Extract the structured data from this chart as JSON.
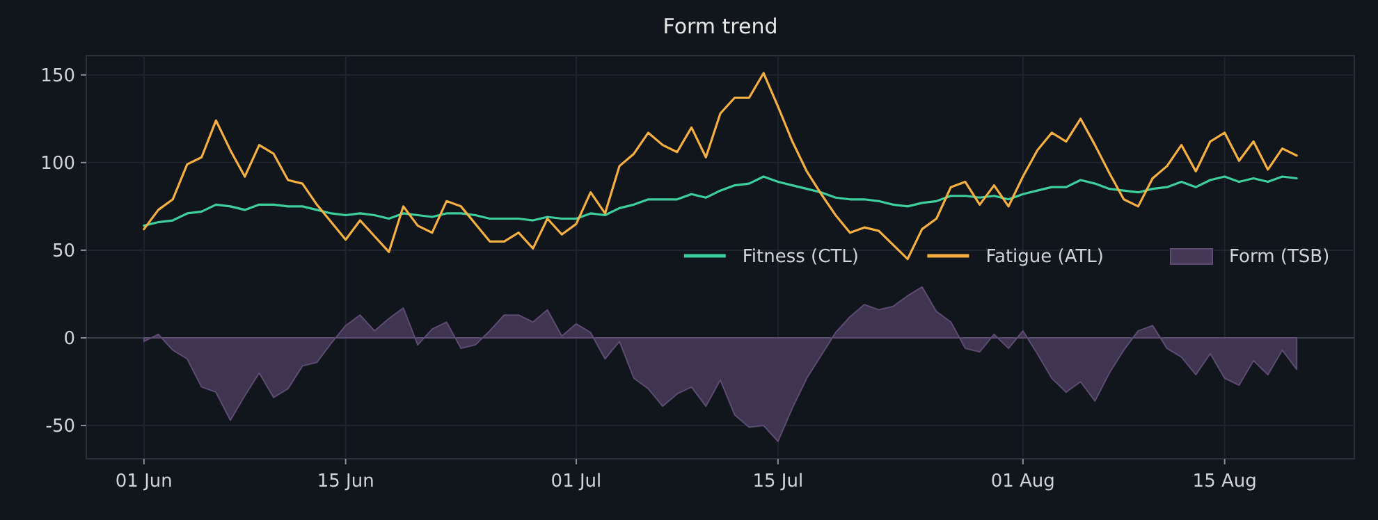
{
  "chart_data": {
    "type": "line",
    "title": "Form trend",
    "x": [
      "--06-01",
      "--06-02",
      "--06-03",
      "--06-04",
      "--06-05",
      "--06-06",
      "--06-07",
      "--06-08",
      "--06-09",
      "--06-10",
      "--06-11",
      "--06-12",
      "--06-13",
      "--06-14",
      "--06-15",
      "--06-16",
      "--06-17",
      "--06-18",
      "--06-19",
      "--06-20",
      "--06-21",
      "--06-22",
      "--06-23",
      "--06-24",
      "--06-25",
      "--06-26",
      "--06-27",
      "--06-28",
      "--06-29",
      "--06-30",
      "--07-01",
      "--07-02",
      "--07-03",
      "--07-04",
      "--07-05",
      "--07-06",
      "--07-07",
      "--07-08",
      "--07-09",
      "--07-10",
      "--07-11",
      "--07-12",
      "--07-13",
      "--07-14",
      "--07-15",
      "--07-16",
      "--07-17",
      "--07-18",
      "--07-19",
      "--07-20",
      "--07-21",
      "--07-22",
      "--07-23",
      "--07-24",
      "--07-25",
      "--07-26",
      "--07-27",
      "--07-28",
      "--07-29",
      "--07-30",
      "--07-31",
      "--08-01",
      "--08-02",
      "--08-03",
      "--08-04",
      "--08-05",
      "--08-06",
      "--08-07",
      "--08-08",
      "--08-09",
      "--08-10",
      "--08-11",
      "--08-12",
      "--08-13",
      "--08-14",
      "--08-15",
      "--08-16",
      "--08-17",
      "--08-18",
      "--08-19",
      "--08-20"
    ],
    "series": [
      {
        "name": "Fitness (CTL)",
        "color": "#3ecf9e",
        "values": [
          64,
          66,
          67,
          71,
          72,
          76,
          75,
          73,
          76,
          76,
          75,
          75,
          73,
          71,
          70,
          71,
          70,
          68,
          71,
          70,
          69,
          71,
          71,
          70,
          68,
          68,
          68,
          67,
          69,
          68,
          68,
          71,
          70,
          74,
          76,
          79,
          79,
          79,
          82,
          80,
          84,
          87,
          88,
          92,
          89,
          87,
          85,
          83,
          80,
          79,
          79,
          78,
          76,
          75,
          77,
          78,
          81,
          81,
          80,
          81,
          79,
          82,
          84,
          86,
          86,
          90,
          88,
          85,
          84,
          83,
          85,
          86,
          89,
          86,
          90,
          92,
          89,
          91,
          89,
          92,
          91
        ]
      },
      {
        "name": "Fatigue (ATL)",
        "color": "#f5b041",
        "values": [
          62,
          73,
          79,
          99,
          103,
          124,
          107,
          92,
          110,
          105,
          90,
          88,
          76,
          66,
          56,
          67,
          58,
          49,
          75,
          64,
          60,
          78,
          75,
          65,
          55,
          55,
          60,
          51,
          68,
          59,
          65,
          83,
          71,
          98,
          105,
          117,
          110,
          106,
          120,
          103,
          128,
          137,
          137,
          151,
          132,
          112,
          95,
          82,
          70,
          60,
          63,
          61,
          53,
          45,
          62,
          68,
          86,
          89,
          76,
          87,
          75,
          92,
          107,
          117,
          112,
          125,
          110,
          94,
          79,
          75,
          91,
          98,
          110,
          95,
          112,
          117,
          101,
          112,
          96,
          108,
          104
        ]
      },
      {
        "name": "Form (TSB)",
        "type": "area",
        "color": "#453857",
        "values": [
          -2,
          2,
          -7,
          -12,
          -28,
          -31,
          -47,
          -33,
          -20,
          -34,
          -29,
          -16,
          -14,
          -3,
          7,
          13,
          4,
          11,
          17,
          -4,
          5,
          9,
          -6,
          -4,
          4,
          13,
          13,
          9,
          16,
          1,
          8,
          3,
          -12,
          -2,
          -23,
          -29,
          -39,
          -32,
          -28,
          -39,
          -24,
          -44,
          -51,
          -50,
          -59,
          -40,
          -23,
          -10,
          3,
          12,
          19,
          16,
          18,
          24,
          29,
          15,
          9,
          -6,
          -8,
          2,
          -6,
          4,
          -9,
          -23,
          -31,
          -25,
          -36,
          -20,
          -7,
          4,
          7,
          -6,
          -11,
          -21,
          -9,
          -23,
          -27,
          -13,
          -21,
          -7,
          -18
        ]
      }
    ],
    "xlim": [
      "--05-28",
      "--08-24"
    ],
    "xticks": [
      {
        "value": "--06-01",
        "label": "01 Jun"
      },
      {
        "value": "--06-15",
        "label": "15 Jun"
      },
      {
        "value": "--07-01",
        "label": "01 Jul"
      },
      {
        "value": "--07-15",
        "label": "15 Jul"
      },
      {
        "value": "--08-01",
        "label": "01 Aug"
      },
      {
        "value": "--08-15",
        "label": "15 Aug"
      }
    ],
    "ylim": [
      -69,
      161
    ],
    "yticks": [
      -50,
      0,
      50,
      100,
      150
    ],
    "ref_lines": [
      {
        "axis": "y",
        "value": 0,
        "color": "#3a3f4b"
      }
    ],
    "grid": true,
    "legend": "right"
  }
}
